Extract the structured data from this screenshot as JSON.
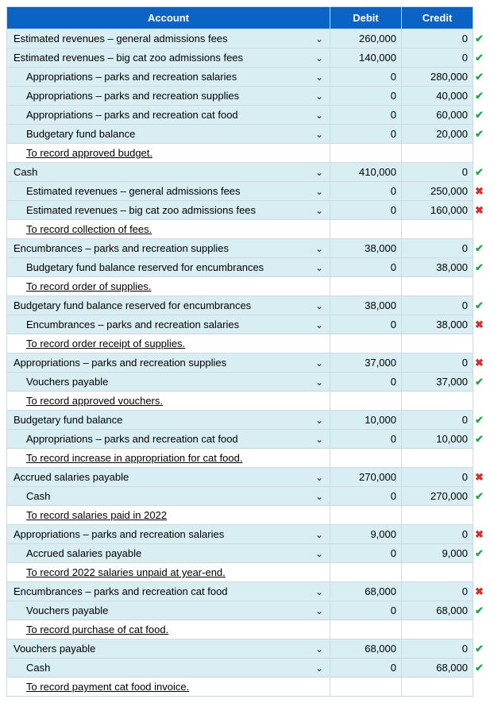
{
  "headers": {
    "account": "Account",
    "debit": "Debit",
    "credit": "Credit"
  },
  "chevron": "⌄",
  "check_glyph": "✔",
  "cross_glyph": "✖",
  "groups": [
    {
      "rows": [
        {
          "label": "Estimated revenues – general admissions fees",
          "indent": 0,
          "debit": "260,000",
          "credit": "0",
          "mark": "ok"
        },
        {
          "label": "Estimated revenues – big cat zoo admissions fees",
          "indent": 0,
          "debit": "140,000",
          "credit": "0",
          "mark": "ok"
        },
        {
          "label": "Appropriations – parks and recreation salaries",
          "indent": 1,
          "debit": "0",
          "credit": "280,000",
          "mark": "ok"
        },
        {
          "label": "Appropriations – parks and recreation supplies",
          "indent": 1,
          "debit": "0",
          "credit": "40,000",
          "mark": "ok"
        },
        {
          "label": "Appropriations – parks and recreation cat food",
          "indent": 1,
          "debit": "0",
          "credit": "60,000",
          "mark": "ok"
        },
        {
          "label": "Budgetary fund balance",
          "indent": 1,
          "debit": "0",
          "credit": "20,000",
          "mark": "ok"
        }
      ],
      "narration": "To record approved budget."
    },
    {
      "rows": [
        {
          "label": "Cash",
          "indent": 0,
          "debit": "410,000",
          "credit": "0",
          "mark": "ok"
        },
        {
          "label": "Estimated revenues – general admissions fees",
          "indent": 1,
          "debit": "0",
          "credit": "250,000",
          "mark": "bad"
        },
        {
          "label": "Estimated revenues – big cat zoo admissions fees",
          "indent": 1,
          "debit": "0",
          "credit": "160,000",
          "mark": "bad"
        }
      ],
      "narration": "To record collection of fees."
    },
    {
      "rows": [
        {
          "label": "Encumbrances – parks and recreation supplies",
          "indent": 0,
          "debit": "38,000",
          "credit": "0",
          "mark": "ok"
        },
        {
          "label": "Budgetary fund balance reserved for encumbrances",
          "indent": 1,
          "debit": "0",
          "credit": "38,000",
          "mark": "ok"
        }
      ],
      "narration": "To record order of supplies."
    },
    {
      "rows": [
        {
          "label": "Budgetary fund balance reserved for encumbrances",
          "indent": 0,
          "debit": "38,000",
          "credit": "0",
          "mark": "ok"
        },
        {
          "label": "Encumbrances – parks and recreation salaries",
          "indent": 1,
          "debit": "0",
          "credit": "38,000",
          "mark": "bad"
        }
      ],
      "narration": "To record order receipt of supplies."
    },
    {
      "rows": [
        {
          "label": "Appropriations – parks and recreation supplies",
          "indent": 0,
          "debit": "37,000",
          "credit": "0",
          "mark": "bad"
        },
        {
          "label": "Vouchers payable",
          "indent": 1,
          "debit": "0",
          "credit": "37,000",
          "mark": "ok"
        }
      ],
      "narration": "To record approved vouchers."
    },
    {
      "rows": [
        {
          "label": "Budgetary fund balance",
          "indent": 0,
          "debit": "10,000",
          "credit": "0",
          "mark": "ok"
        },
        {
          "label": "Appropriations – parks and recreation cat food",
          "indent": 1,
          "debit": "0",
          "credit": "10,000",
          "mark": "ok"
        }
      ],
      "narration": "To record increase in appropriation for cat food."
    },
    {
      "rows": [
        {
          "label": "Accrued salaries payable",
          "indent": 0,
          "debit": "270,000",
          "credit": "0",
          "mark": "bad"
        },
        {
          "label": "Cash",
          "indent": 1,
          "debit": "0",
          "credit": "270,000",
          "mark": "ok"
        }
      ],
      "narration": "To record salaries paid in 2022"
    },
    {
      "rows": [
        {
          "label": "Appropriations – parks and recreation salaries",
          "indent": 0,
          "debit": "9,000",
          "credit": "0",
          "mark": "bad"
        },
        {
          "label": "Accrued salaries payable",
          "indent": 1,
          "debit": "0",
          "credit": "9,000",
          "mark": "ok"
        }
      ],
      "narration": "To record 2022 salaries unpaid at year-end."
    },
    {
      "rows": [
        {
          "label": "Encumbrances – parks and recreation cat food",
          "indent": 0,
          "debit": "68,000",
          "credit": "0",
          "mark": "bad"
        },
        {
          "label": "Vouchers payable",
          "indent": 1,
          "debit": "0",
          "credit": "68,000",
          "mark": "ok"
        }
      ],
      "narration": "To record purchase of cat food."
    },
    {
      "rows": [
        {
          "label": "Vouchers payable",
          "indent": 0,
          "debit": "68,000",
          "credit": "0",
          "mark": "ok"
        },
        {
          "label": "Cash",
          "indent": 1,
          "debit": "0",
          "credit": "68,000",
          "mark": "ok"
        }
      ],
      "narration": "To record payment cat food invoice."
    }
  ]
}
